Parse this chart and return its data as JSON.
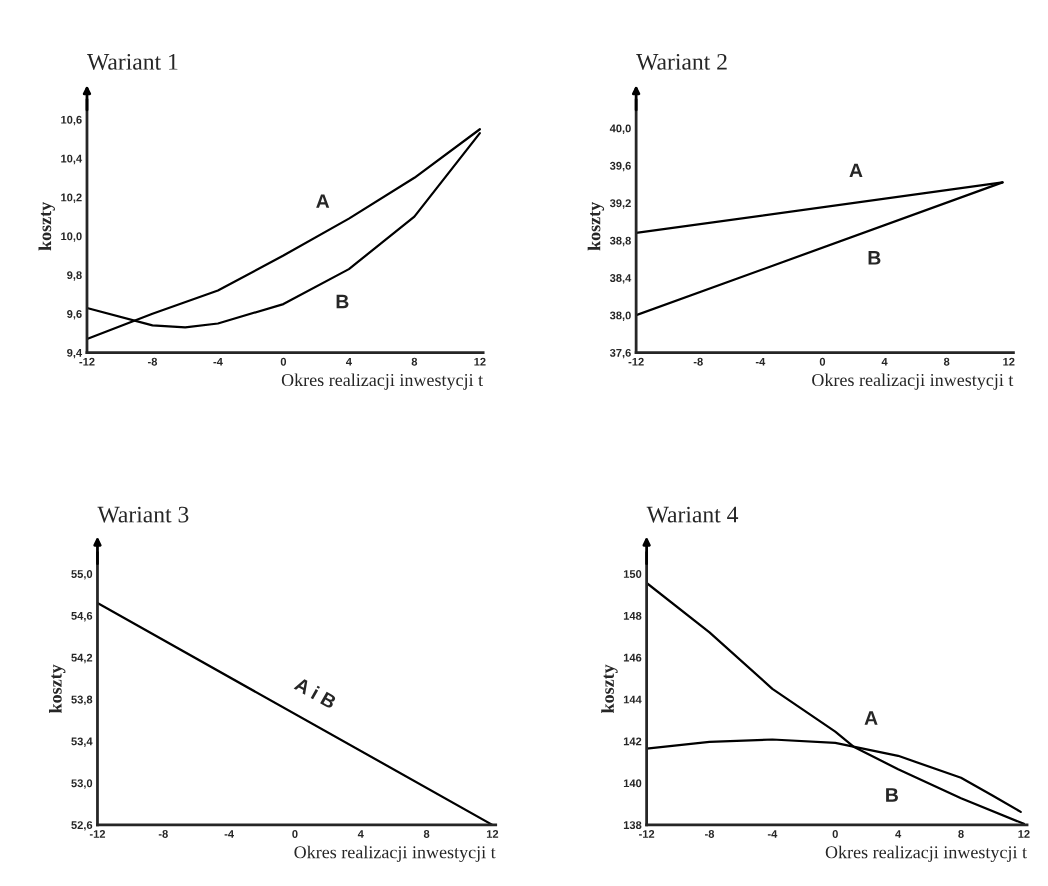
{
  "chart_data": [
    {
      "type": "line",
      "title": "Wariant 1",
      "xlabel": "Okres realizacji inwestycji t",
      "ylabel": "koszty",
      "grid": false,
      "legend": false,
      "xlim": [
        -12,
        12.2
      ],
      "ylim": [
        9.4,
        10.7
      ],
      "xticks": [
        -12,
        -8,
        -4,
        0,
        4,
        8,
        12
      ],
      "yticks": [
        {
          "value": 9.4,
          "label": "9,4"
        },
        {
          "value": 9.6,
          "label": "9,6"
        },
        {
          "value": 9.8,
          "label": "9,8"
        },
        {
          "value": 10.0,
          "label": "10,0"
        },
        {
          "value": 10.2,
          "label": "10,2"
        },
        {
          "value": 10.4,
          "label": "10,4"
        },
        {
          "value": 10.6,
          "label": "10,6"
        }
      ],
      "series": [
        {
          "name": "A",
          "color": "#000000",
          "x": [
            -12,
            -8,
            -4,
            0,
            4,
            8,
            12
          ],
          "values": [
            9.47,
            9.6,
            9.72,
            9.9,
            10.09,
            10.3,
            10.55
          ]
        },
        {
          "name": "B",
          "color": "#000000",
          "x": [
            -12,
            -8,
            -6,
            -4,
            0,
            4,
            8,
            12
          ],
          "values": [
            9.63,
            9.54,
            9.53,
            9.55,
            9.65,
            9.83,
            10.1,
            10.53
          ]
        }
      ]
    },
    {
      "type": "line",
      "title": "Wariant 2",
      "xlabel": "Okres realizacji inwestycji t",
      "ylabel": "koszty",
      "grid": false,
      "legend": false,
      "xlim": [
        -12,
        12.3
      ],
      "ylim": [
        37.6,
        40.3
      ],
      "xticks": [
        -12,
        -8,
        -4,
        0,
        4,
        8,
        12
      ],
      "yticks": [
        {
          "value": 37.6,
          "label": "37,6"
        },
        {
          "value": 38.0,
          "label": "38,0"
        },
        {
          "value": 38.4,
          "label": "38,4"
        },
        {
          "value": 38.8,
          "label": "38,8"
        },
        {
          "value": 39.2,
          "label": "39,2"
        },
        {
          "value": 39.6,
          "label": "39,6"
        },
        {
          "value": 40.0,
          "label": "40,0"
        }
      ],
      "series": [
        {
          "name": "A",
          "color": "#000000",
          "x": [
            -12,
            11.6
          ],
          "values": [
            38.88,
            39.42
          ]
        },
        {
          "name": "B",
          "color": "#000000",
          "x": [
            -12,
            11.6
          ],
          "values": [
            38.0,
            39.42
          ]
        }
      ]
    },
    {
      "type": "line",
      "title": "Wariant 3",
      "xlabel": "Okres realizacji inwestycji t",
      "ylabel": "koszty",
      "grid": false,
      "legend": false,
      "xlim": [
        -12,
        12.2
      ],
      "ylim": [
        52.6,
        55.2
      ],
      "xticks": [
        -12,
        -8,
        -4,
        0,
        4,
        8,
        12
      ],
      "yticks": [
        {
          "value": 52.6,
          "label": "52,6"
        },
        {
          "value": 53.0,
          "label": "53,0"
        },
        {
          "value": 53.4,
          "label": "53,4"
        },
        {
          "value": 53.8,
          "label": "53,8"
        },
        {
          "value": 54.2,
          "label": "54,2"
        },
        {
          "value": 54.6,
          "label": "54,6"
        },
        {
          "value": 55.0,
          "label": "55,0"
        }
      ],
      "series": [
        {
          "name": "A i B",
          "color": "#000000",
          "x": [
            -12,
            12
          ],
          "values": [
            54.72,
            52.6
          ]
        }
      ]
    },
    {
      "type": "line",
      "title": "Wariant 4",
      "xlabel": "Okres realizacji inwestycji t",
      "ylabel": "koszty",
      "grid": false,
      "legend": false,
      "xlim": [
        -12,
        12.2
      ],
      "ylim": [
        138,
        151
      ],
      "xticks": [
        -12,
        -8,
        -4,
        0,
        4,
        8,
        12
      ],
      "yticks": [
        138,
        140,
        142,
        144,
        146,
        148,
        150
      ],
      "series": [
        {
          "name": "A",
          "color": "#000000",
          "x": [
            -12,
            -8,
            -4,
            0,
            4,
            8,
            10,
            11.8
          ],
          "values": [
            141.64,
            141.97,
            142.08,
            141.92,
            141.3,
            140.25,
            139.4,
            138.62
          ]
        },
        {
          "name": "B",
          "color": "#000000",
          "x": [
            -12,
            -8,
            -4,
            0,
            1.2,
            4,
            8,
            12
          ],
          "values": [
            149.56,
            147.2,
            144.5,
            142.46,
            141.72,
            140.66,
            139.27,
            138.05
          ]
        }
      ]
    }
  ]
}
